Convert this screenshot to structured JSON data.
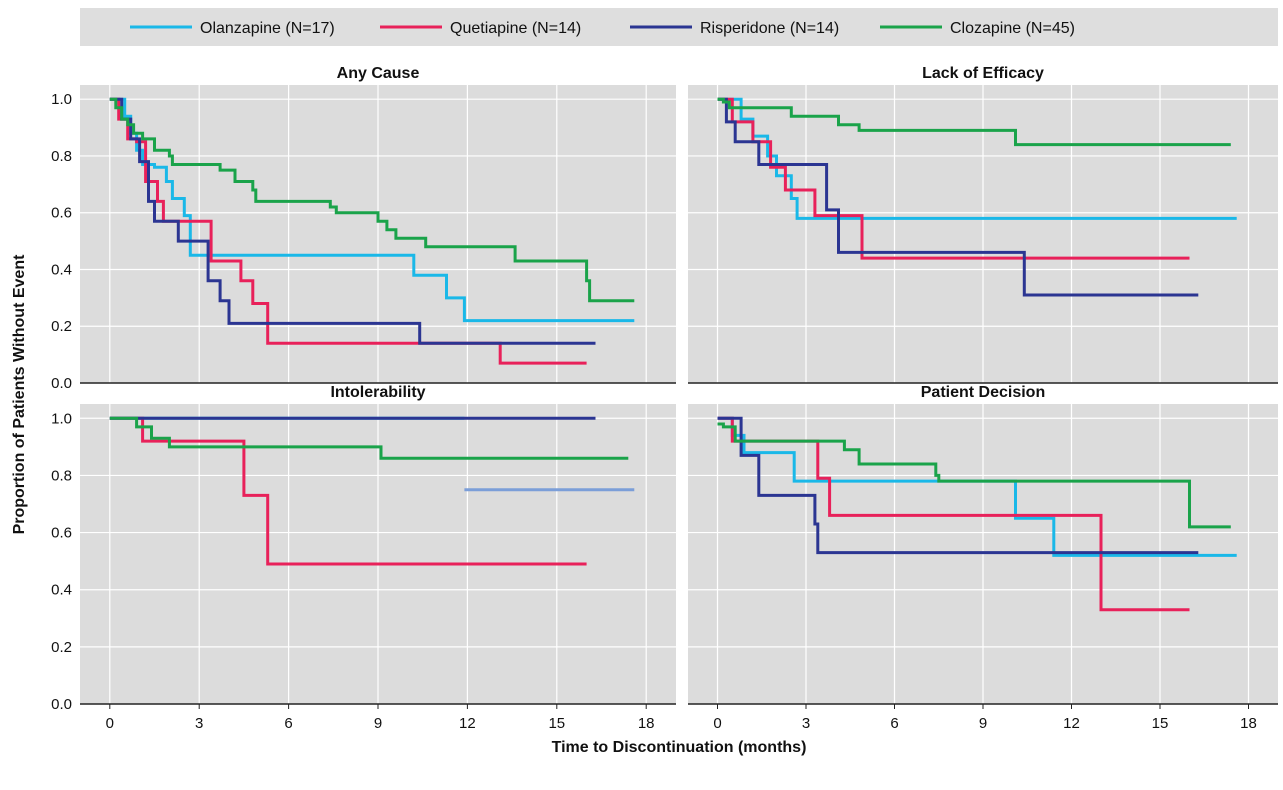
{
  "chart_data": {
    "type": "line",
    "step": true,
    "xlabel": "Time to Discontinuation (months)",
    "ylabel": "Proportion of Patients Without Event",
    "xlim": [
      -1,
      19
    ],
    "ylim": [
      0,
      1.05
    ],
    "xticks": [
      0,
      3,
      6,
      9,
      12,
      15,
      18
    ],
    "yticks": [
      "0.0",
      "0.2",
      "0.4",
      "0.6",
      "0.8",
      "1.0"
    ],
    "grid": true,
    "legend_position": "top",
    "legend": [
      {
        "name": "Olanzapine (N=17)",
        "color": "#1ab8e8"
      },
      {
        "name": "Quetiapine (N=14)",
        "color": "#e8215a"
      },
      {
        "name": "Risperidone (N=14)",
        "color": "#2b3592"
      },
      {
        "name": "Clozapine (N=45)",
        "color": "#1aa34a"
      }
    ],
    "panels": [
      {
        "title": "Any Cause",
        "series": [
          {
            "name": "Olanzapine (N=17)",
            "color": "#1ab8e8",
            "x": [
              0,
              0.5,
              0.7,
              0.9,
              1.1,
              1.5,
              1.9,
              2.1,
              2.5,
              2.7,
              10.2,
              11.3,
              11.9,
              17.6
            ],
            "y": [
              1.0,
              0.94,
              0.88,
              0.82,
              0.77,
              0.76,
              0.71,
              0.65,
              0.59,
              0.45,
              0.38,
              0.3,
              0.22,
              0.22
            ]
          },
          {
            "name": "Quetiapine (N=14)",
            "color": "#e8215a",
            "x": [
              0,
              0.3,
              0.6,
              0.9,
              1.2,
              1.6,
              1.8,
              3.4,
              3.7,
              4.4,
              4.8,
              5.3,
              13.1,
              16.0
            ],
            "y": [
              1.0,
              0.93,
              0.86,
              0.85,
              0.71,
              0.64,
              0.57,
              0.43,
              0.43,
              0.36,
              0.28,
              0.14,
              0.07,
              0.07
            ]
          },
          {
            "name": "Risperidone (N=14)",
            "color": "#2b3592",
            "x": [
              0,
              0.4,
              0.7,
              1.0,
              1.3,
              1.5,
              2.3,
              3.3,
              3.7,
              4.0,
              4.2,
              10.4,
              16.3
            ],
            "y": [
              1.0,
              0.93,
              0.86,
              0.78,
              0.64,
              0.57,
              0.5,
              0.36,
              0.29,
              0.21,
              0.21,
              0.14,
              0.14
            ]
          },
          {
            "name": "Clozapine (N=45)",
            "color": "#1aa34a",
            "x": [
              0,
              0.2,
              0.4,
              0.6,
              0.8,
              1.1,
              1.5,
              2.0,
              2.1,
              3.7,
              4.2,
              4.8,
              4.9,
              7.4,
              7.6,
              9.0,
              9.3,
              9.6,
              10.6,
              13.6,
              16.0,
              16.1,
              17.6
            ],
            "y": [
              1.0,
              0.97,
              0.93,
              0.91,
              0.88,
              0.86,
              0.82,
              0.8,
              0.77,
              0.75,
              0.71,
              0.68,
              0.64,
              0.62,
              0.6,
              0.57,
              0.54,
              0.51,
              0.48,
              0.43,
              0.36,
              0.29,
              0.29
            ]
          }
        ]
      },
      {
        "title": "Lack of Efficacy",
        "series": [
          {
            "name": "Olanzapine (N=17)",
            "color": "#1ab8e8",
            "x": [
              0,
              0.8,
              1.2,
              1.7,
              2.0,
              2.5,
              2.7,
              17.6
            ],
            "y": [
              1.0,
              0.93,
              0.87,
              0.8,
              0.73,
              0.65,
              0.58,
              0.58
            ]
          },
          {
            "name": "Quetiapine (N=14)",
            "color": "#e8215a",
            "x": [
              0,
              0.5,
              1.2,
              1.8,
              2.3,
              3.3,
              4.9,
              16.0
            ],
            "y": [
              1.0,
              0.92,
              0.85,
              0.76,
              0.68,
              0.59,
              0.44,
              0.44
            ]
          },
          {
            "name": "Risperidone (N=14)",
            "color": "#2b3592",
            "x": [
              0,
              0.3,
              0.6,
              1.4,
              1.8,
              3.7,
              4.1,
              10.4,
              16.3
            ],
            "y": [
              1.0,
              0.92,
              0.85,
              0.77,
              0.77,
              0.61,
              0.46,
              0.31,
              0.31
            ]
          },
          {
            "name": "Clozapine (N=45)",
            "color": "#1aa34a",
            "x": [
              0,
              0.2,
              0.4,
              2.5,
              4.1,
              4.8,
              10.1,
              17.4
            ],
            "y": [
              1.0,
              0.99,
              0.97,
              0.94,
              0.91,
              0.89,
              0.84,
              0.84
            ]
          }
        ]
      },
      {
        "title": "Intolerability",
        "series": [
          {
            "name": "Olanzapine (N=17)",
            "color": "#1ab8e8",
            "x": [
              0,
              11.9
            ],
            "y": [
              1.0,
              1.0
            ]
          },
          {
            "name": "Olanzapine (N=17)",
            "color": "#7b9ed8",
            "x": [
              11.9,
              17.6
            ],
            "y": [
              0.75,
              0.75
            ]
          },
          {
            "name": "Quetiapine (N=14)",
            "color": "#e8215a",
            "x": [
              0,
              1.1,
              4.5,
              5.3,
              16.0
            ],
            "y": [
              1.0,
              0.92,
              0.73,
              0.49,
              0.49
            ]
          },
          {
            "name": "Risperidone (N=14)",
            "color": "#2b3592",
            "x": [
              0,
              16.3
            ],
            "y": [
              1.0,
              1.0
            ]
          },
          {
            "name": "Clozapine (N=45)",
            "color": "#1aa34a",
            "x": [
              0,
              0.9,
              1.4,
              2.0,
              9.1,
              17.4
            ],
            "y": [
              1.0,
              0.97,
              0.93,
              0.9,
              0.86,
              0.86
            ]
          }
        ]
      },
      {
        "title": "Patient Decision",
        "series": [
          {
            "name": "Olanzapine (N=17)",
            "color": "#1ab8e8",
            "x": [
              0,
              0.5,
              0.9,
              1.4,
              2.6,
              10.1,
              11.4,
              17.6
            ],
            "y": [
              1.0,
              0.94,
              0.88,
              0.88,
              0.78,
              0.65,
              0.52,
              0.52
            ]
          },
          {
            "name": "Quetiapine (N=14)",
            "color": "#e8215a",
            "x": [
              0,
              0.5,
              3.4,
              3.8,
              13.0,
              16.0
            ],
            "y": [
              1.0,
              0.92,
              0.79,
              0.66,
              0.33,
              0.33
            ]
          },
          {
            "name": "Risperidone (N=14)",
            "color": "#2b3592",
            "x": [
              0,
              0.8,
              1.4,
              3.3,
              3.4,
              16.3
            ],
            "y": [
              1.0,
              0.87,
              0.73,
              0.63,
              0.53,
              0.53
            ]
          },
          {
            "name": "Clozapine (N=45)",
            "color": "#1aa34a",
            "x": [
              0,
              0.2,
              0.6,
              4.3,
              4.8,
              7.4,
              7.5,
              16.0,
              17.4
            ],
            "y": [
              0.98,
              0.97,
              0.92,
              0.89,
              0.84,
              0.8,
              0.78,
              0.62,
              0.62
            ]
          }
        ]
      }
    ]
  }
}
